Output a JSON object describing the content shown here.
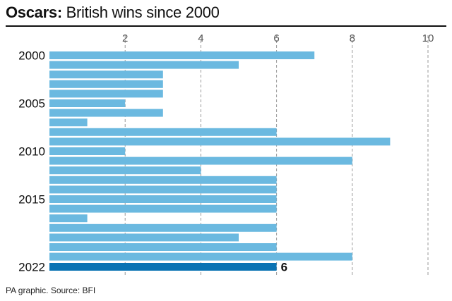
{
  "header": {
    "title_lead": "Oscars:",
    "title_rest": " British wins since 2000"
  },
  "footer": {
    "source": "PA graphic. Source: BFI"
  },
  "colors": {
    "bar": "#6bb9e0",
    "highlight": "#0a73b4",
    "grid": "#9a9a9a",
    "text": "#111111"
  },
  "chart_data": {
    "type": "bar",
    "orientation": "horizontal",
    "title": "Oscars: British wins since 2000",
    "categories": [
      2000,
      2001,
      2002,
      2003,
      2004,
      2005,
      2006,
      2007,
      2008,
      2009,
      2010,
      2011,
      2012,
      2013,
      2014,
      2015,
      2016,
      2017,
      2018,
      2019,
      2020,
      2021,
      2022
    ],
    "values": [
      7,
      5,
      3,
      3,
      3,
      2,
      3,
      1,
      6,
      9,
      2,
      8,
      4,
      6,
      6,
      6,
      6,
      1,
      6,
      5,
      6,
      8,
      6
    ],
    "y_tick_labels": [
      "2000",
      "2005",
      "2010",
      "2015",
      "2022"
    ],
    "x_ticks": [
      2,
      4,
      6,
      8,
      10
    ],
    "xlim": [
      0,
      10
    ],
    "grid": true,
    "highlight": {
      "category": 2022,
      "label": "6"
    }
  }
}
